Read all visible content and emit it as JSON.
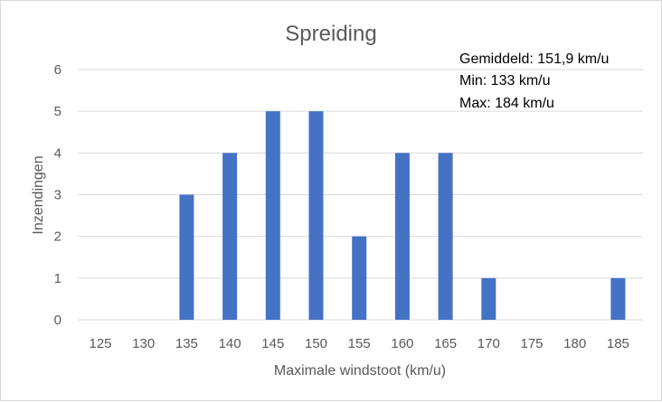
{
  "chart_data": {
    "type": "bar",
    "title": "Spreiding",
    "xlabel": "Maximale windstoot (km/u)",
    "ylabel": "Inzendingen",
    "categories": [
      "125",
      "130",
      "135",
      "140",
      "145",
      "150",
      "155",
      "160",
      "165",
      "170",
      "175",
      "180",
      "185"
    ],
    "values": [
      0,
      0,
      3,
      4,
      5,
      5,
      2,
      4,
      4,
      1,
      0,
      0,
      1
    ],
    "ylim": [
      0,
      6
    ],
    "yticks": [
      "0",
      "1",
      "2",
      "3",
      "4",
      "5",
      "6"
    ],
    "grid": true,
    "bar_color": "#4472c4",
    "annotations": [
      "Gemiddeld: 151,9 km/u",
      "Min: 133 km/u",
      "Max: 184 km/u"
    ]
  }
}
